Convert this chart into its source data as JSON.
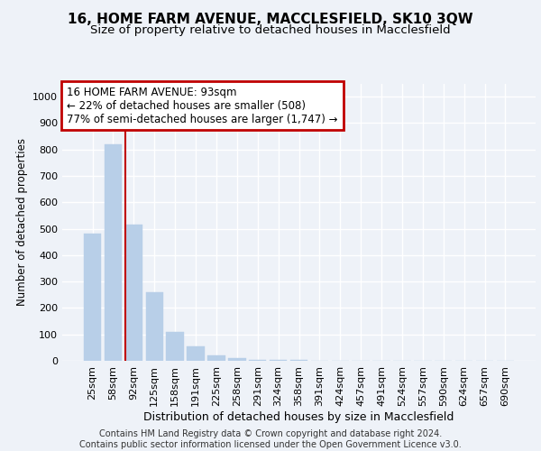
{
  "title": "16, HOME FARM AVENUE, MACCLESFIELD, SK10 3QW",
  "subtitle": "Size of property relative to detached houses in Macclesfield",
  "xlabel": "Distribution of detached houses by size in Macclesfield",
  "ylabel": "Number of detached properties",
  "categories": [
    "25sqm",
    "58sqm",
    "92sqm",
    "125sqm",
    "158sqm",
    "191sqm",
    "225sqm",
    "258sqm",
    "291sqm",
    "324sqm",
    "358sqm",
    "391sqm",
    "424sqm",
    "457sqm",
    "491sqm",
    "524sqm",
    "557sqm",
    "590sqm",
    "624sqm",
    "657sqm",
    "690sqm"
  ],
  "values": [
    480,
    820,
    515,
    260,
    110,
    55,
    20,
    10,
    5,
    3,
    2,
    1,
    1,
    0,
    0,
    0,
    0,
    0,
    0,
    0,
    0
  ],
  "bar_color": "#b8cfe8",
  "bar_edge_color": "#b8cfe8",
  "highlight_bar_index": 2,
  "highlight_color": "#c00000",
  "annotation_text": "16 HOME FARM AVENUE: 93sqm\n← 22% of detached houses are smaller (508)\n77% of semi-detached houses are larger (1,747) →",
  "annotation_box_color": "#ffffff",
  "annotation_border_color": "#c00000",
  "ylim": [
    0,
    1050
  ],
  "yticks": [
    0,
    100,
    200,
    300,
    400,
    500,
    600,
    700,
    800,
    900,
    1000
  ],
  "footer_text": "Contains HM Land Registry data © Crown copyright and database right 2024.\nContains public sector information licensed under the Open Government Licence v3.0.",
  "background_color": "#eef2f8",
  "grid_color": "#ffffff",
  "title_fontsize": 11,
  "subtitle_fontsize": 9.5,
  "xlabel_fontsize": 9,
  "ylabel_fontsize": 8.5,
  "tick_fontsize": 8,
  "annotation_fontsize": 8.5,
  "footer_fontsize": 7
}
